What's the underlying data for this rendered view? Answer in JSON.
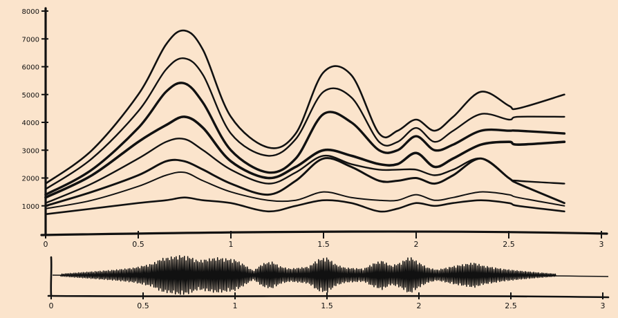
{
  "colors": {
    "background": "#fbe4cc",
    "ink": "#111111"
  },
  "chart_data": [
    {
      "type": "line",
      "title": "",
      "xlabel": "",
      "ylabel": "",
      "xlim": [
        0,
        3
      ],
      "ylim": [
        0,
        8000
      ],
      "x_ticks": [
        0,
        0.5,
        1,
        1.5,
        2,
        2.5,
        3
      ],
      "x_tick_labels": [
        "0",
        "0.5",
        "1",
        "1.5",
        "2",
        "2.5",
        "3"
      ],
      "y_ticks": [
        1000,
        2000,
        3000,
        4000,
        5000,
        6000,
        7000,
        8000
      ],
      "y_tick_labels": [
        "1000",
        "2000",
        "3000",
        "4000",
        "5000",
        "6000",
        "7000",
        "8000"
      ],
      "grid": false,
      "series": [
        {
          "x": [
            0,
            0.25,
            0.5,
            0.65,
            0.75,
            0.85,
            1.0,
            1.2,
            1.35,
            1.5,
            1.65,
            1.8,
            1.9,
            2.0,
            2.1,
            2.2,
            2.35,
            2.5,
            2.55,
            2.8
          ],
          "values": [
            1800,
            3000,
            5000,
            6800,
            7300,
            6600,
            4200,
            3100,
            3600,
            5800,
            5700,
            3600,
            3700,
            4100,
            3700,
            4200,
            5100,
            4600,
            4500,
            5000
          ]
        },
        {
          "x": [
            0,
            0.25,
            0.5,
            0.65,
            0.75,
            0.85,
            1.0,
            1.2,
            1.35,
            1.5,
            1.65,
            1.8,
            1.9,
            2.0,
            2.1,
            2.2,
            2.35,
            2.5,
            2.55,
            2.8
          ],
          "values": [
            1600,
            2700,
            4400,
            5900,
            6300,
            5700,
            3600,
            2800,
            3400,
            5100,
            4900,
            3300,
            3300,
            3800,
            3300,
            3700,
            4300,
            4100,
            4200,
            4200
          ]
        },
        {
          "x": [
            0,
            0.25,
            0.5,
            0.65,
            0.75,
            0.85,
            1.0,
            1.2,
            1.35,
            1.5,
            1.65,
            1.8,
            1.9,
            2.0,
            2.1,
            2.2,
            2.35,
            2.5,
            2.55,
            2.8
          ],
          "values": [
            1400,
            2300,
            3800,
            5100,
            5400,
            4700,
            3000,
            2200,
            2700,
            4300,
            4000,
            3000,
            3000,
            3500,
            3000,
            3200,
            3700,
            3700,
            3700,
            3600
          ]
        },
        {
          "x": [
            0,
            0.25,
            0.5,
            0.65,
            0.75,
            0.85,
            1.0,
            1.2,
            1.35,
            1.5,
            1.65,
            1.8,
            1.9,
            2.0,
            2.1,
            2.2,
            2.35,
            2.5,
            2.55,
            2.8
          ],
          "values": [
            1300,
            2100,
            3300,
            3900,
            4200,
            3800,
            2600,
            2000,
            2400,
            3000,
            2800,
            2500,
            2500,
            2900,
            2400,
            2700,
            3200,
            3300,
            3200,
            3300
          ]
        },
        {
          "x": [
            0,
            0.25,
            0.5,
            0.65,
            0.75,
            0.85,
            1.0,
            1.2,
            1.35,
            1.5,
            1.65,
            1.8,
            1.9,
            2.0,
            2.1,
            2.2,
            2.35,
            2.5,
            2.55,
            2.8
          ],
          "values": [
            1100,
            1800,
            2700,
            3300,
            3400,
            3000,
            2300,
            1800,
            2200,
            2800,
            2500,
            2300,
            2300,
            2300,
            2100,
            2300,
            2700,
            2000,
            1900,
            1800
          ]
        },
        {
          "x": [
            0,
            0.25,
            0.5,
            0.65,
            0.75,
            0.85,
            1.0,
            1.2,
            1.35,
            1.5,
            1.65,
            1.8,
            1.9,
            2.0,
            2.1,
            2.2,
            2.35,
            2.5,
            2.55,
            2.8
          ],
          "values": [
            1000,
            1500,
            2100,
            2600,
            2600,
            2300,
            1800,
            1400,
            1900,
            2700,
            2400,
            1900,
            1900,
            2000,
            1800,
            2100,
            2700,
            2000,
            1800,
            1100
          ]
        },
        {
          "x": [
            0,
            0.25,
            0.5,
            0.65,
            0.75,
            0.85,
            1.0,
            1.2,
            1.35,
            1.5,
            1.65,
            1.8,
            1.9,
            2.0,
            2.1,
            2.2,
            2.35,
            2.5,
            2.55,
            2.8
          ],
          "values": [
            900,
            1200,
            1700,
            2100,
            2200,
            1900,
            1500,
            1200,
            1200,
            1500,
            1300,
            1200,
            1200,
            1400,
            1200,
            1300,
            1500,
            1400,
            1300,
            1000
          ]
        },
        {
          "x": [
            0,
            0.25,
            0.5,
            0.65,
            0.75,
            0.85,
            1.0,
            1.2,
            1.35,
            1.5,
            1.65,
            1.8,
            1.9,
            2.0,
            2.1,
            2.2,
            2.35,
            2.5,
            2.55,
            2.8
          ],
          "values": [
            700,
            900,
            1100,
            1200,
            1300,
            1200,
            1100,
            800,
            1000,
            1200,
            1100,
            800,
            900,
            1100,
            1000,
            1100,
            1200,
            1100,
            1000,
            800
          ]
        }
      ]
    },
    {
      "type": "area",
      "title": "",
      "xlabel": "",
      "ylabel": "",
      "xlim": [
        0,
        3
      ],
      "ylim": [
        -1,
        1
      ],
      "x_ticks": [
        0,
        0.5,
        1,
        1.5,
        2,
        2.5,
        3
      ],
      "x_tick_labels": [
        "0",
        "0.5",
        "1",
        "1.5",
        "2",
        "2.5",
        "3"
      ],
      "grid": false,
      "envelope": {
        "x": [
          0.05,
          0.2,
          0.35,
          0.45,
          0.55,
          0.6,
          0.7,
          0.75,
          0.8,
          0.9,
          1.0,
          1.05,
          1.1,
          1.15,
          1.2,
          1.25,
          1.3,
          1.4,
          1.45,
          1.5,
          1.55,
          1.6,
          1.7,
          1.75,
          1.8,
          1.85,
          1.9,
          1.95,
          2.0,
          2.05,
          2.1,
          2.2,
          2.3,
          2.35,
          2.45,
          2.55,
          2.65,
          2.75
        ],
        "values": [
          0.05,
          0.15,
          0.25,
          0.35,
          0.55,
          0.8,
          0.95,
          0.9,
          0.7,
          0.85,
          0.75,
          0.5,
          0.2,
          0.55,
          0.65,
          0.4,
          0.3,
          0.4,
          0.75,
          0.85,
          0.5,
          0.35,
          0.3,
          0.55,
          0.7,
          0.45,
          0.6,
          0.9,
          0.6,
          0.35,
          0.25,
          0.45,
          0.6,
          0.45,
          0.3,
          0.2,
          0.12,
          0.05
        ]
      }
    }
  ]
}
